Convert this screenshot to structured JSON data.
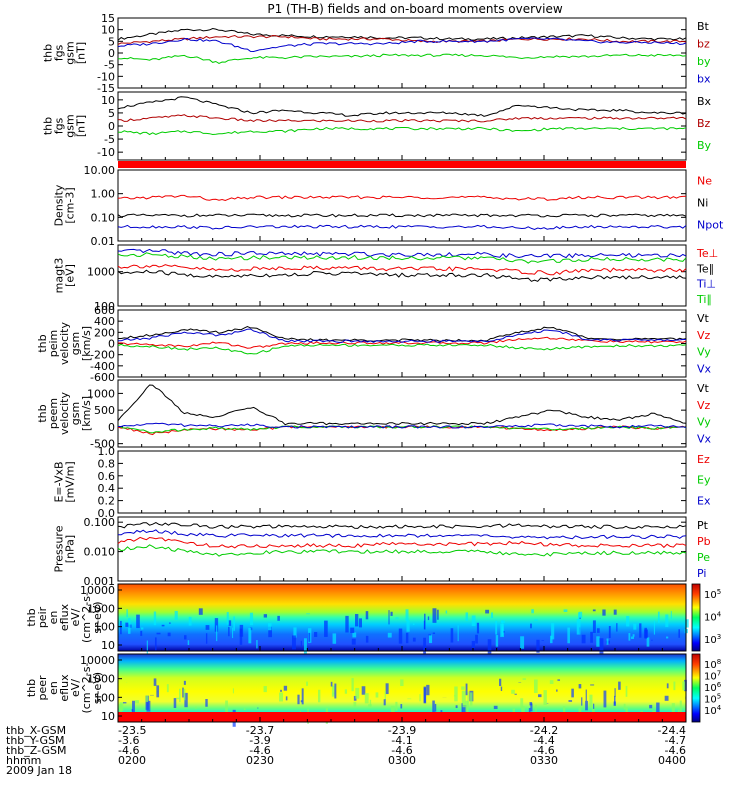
{
  "title": "P1 (TH-B) fields and on-board moments overview",
  "chart_data": [
    {
      "type": "line",
      "panel": "fgs_gsm",
      "ylabel": [
        "thb",
        "fgs",
        "gsm",
        "[nT]"
      ],
      "yticks": [
        "15",
        "10",
        "5",
        "0",
        "-5",
        "-10",
        "-15"
      ],
      "ylim": [
        -15,
        15
      ],
      "series": [
        {
          "name": "Bt",
          "color": "#000000",
          "values": [
            6,
            8,
            10,
            10,
            8,
            7.5,
            7,
            7,
            6.5,
            6.5,
            6,
            6,
            6.5,
            7,
            7.5,
            6.5,
            6,
            6
          ]
        },
        {
          "name": "bz",
          "color": "#b00000",
          "values": [
            4,
            5,
            6,
            7,
            7,
            7,
            6,
            6,
            6,
            5,
            5,
            5,
            6,
            6,
            6,
            5,
            5,
            5
          ]
        },
        {
          "name": "by",
          "color": "#00cc00",
          "values": [
            -2,
            -3,
            -1,
            -4,
            -2,
            -2,
            -1.5,
            -1.5,
            -1,
            -1,
            -1,
            -1,
            -2,
            -1.5,
            -1.5,
            -1,
            -1,
            -1
          ]
        },
        {
          "name": "bx",
          "color": "#0000cc",
          "values": [
            3,
            4,
            6,
            5,
            1,
            3,
            4,
            4,
            4,
            5,
            5,
            5,
            6,
            6,
            5,
            4.5,
            4.5,
            4
          ]
        }
      ]
    },
    {
      "type": "line",
      "panel": "fgs_gsm_2",
      "ylabel": [
        "thb",
        "fgs",
        "gsm",
        "[nT]"
      ],
      "yticks": [
        "10",
        "5",
        "0",
        "-5",
        "-10"
      ],
      "ylim": [
        -13,
        13
      ],
      "series": [
        {
          "name": "Bx",
          "color": "#000000",
          "values": [
            7,
            9,
            11,
            8,
            5,
            6,
            5,
            4,
            5,
            5,
            5,
            4,
            8,
            7,
            6,
            6,
            5,
            5
          ]
        },
        {
          "name": "Bz",
          "color": "#b00000",
          "values": [
            2,
            3,
            4,
            3,
            2,
            2,
            2,
            2,
            2,
            2,
            2,
            2,
            3,
            3,
            3,
            3,
            3,
            3
          ]
        },
        {
          "name": "By",
          "color": "#00cc00",
          "values": [
            -2,
            -3,
            -2,
            -3,
            -2,
            -2,
            -1,
            -1,
            -1,
            -1,
            -1,
            -1,
            -2,
            -1,
            -1,
            -1,
            -1,
            -1
          ]
        }
      ]
    },
    {
      "type": "line",
      "panel": "density",
      "ylabel": [
        "Density",
        "[cm-3]"
      ],
      "yticks": [
        "10.00",
        "1.00",
        "0.10",
        "0.01"
      ],
      "ylim": [
        0.01,
        10
      ],
      "scale": "log",
      "series": [
        {
          "name": "Ne",
          "color": "#ee0000",
          "values": [
            0.6,
            0.7,
            0.8,
            0.5,
            0.7,
            0.7,
            0.7,
            0.7,
            0.7,
            0.7,
            0.7,
            0.7,
            0.6,
            0.6,
            0.7,
            0.7,
            0.7,
            0.7
          ]
        },
        {
          "name": "Ni",
          "color": "#000000",
          "values": [
            0.12,
            0.12,
            0.12,
            0.12,
            0.12,
            0.12,
            0.12,
            0.12,
            0.12,
            0.12,
            0.12,
            0.12,
            0.12,
            0.12,
            0.12,
            0.12,
            0.12,
            0.12
          ]
        },
        {
          "name": "Npot",
          "color": "#0000cc",
          "values": [
            0.04,
            0.04,
            0.04,
            0.035,
            0.04,
            0.04,
            0.04,
            0.04,
            0.04,
            0.04,
            0.04,
            0.04,
            0.035,
            0.035,
            0.04,
            0.04,
            0.04,
            0.04
          ]
        }
      ]
    },
    {
      "type": "line",
      "panel": "temperature",
      "ylabel": [
        "magt3",
        "[eV]"
      ],
      "yticks": [
        "1000",
        "100"
      ],
      "ylim": [
        100,
        6000
      ],
      "scale": "log",
      "series": [
        {
          "name": "Te⊥",
          "color": "#ee0000",
          "values": [
            1400,
            1500,
            1300,
            1100,
            1200,
            1300,
            1300,
            1300,
            1200,
            1200,
            1200,
            1200,
            1000,
            900,
            1100,
            1100,
            1100,
            1100
          ]
        },
        {
          "name": "Te∥",
          "color": "#000000",
          "values": [
            900,
            1000,
            800,
            700,
            800,
            800,
            900,
            900,
            800,
            800,
            800,
            800,
            600,
            600,
            700,
            700,
            700,
            700
          ]
        },
        {
          "name": "Ti⊥",
          "color": "#0000cc",
          "values": [
            3800,
            4000,
            3500,
            3200,
            3500,
            3300,
            3300,
            3300,
            3200,
            3200,
            3200,
            3200,
            2800,
            2900,
            3000,
            3000,
            2900,
            3000
          ]
        },
        {
          "name": "Ti∥",
          "color": "#00cc00",
          "values": [
            3000,
            3200,
            2700,
            2300,
            2600,
            2600,
            2600,
            2600,
            2500,
            2500,
            2500,
            2500,
            2000,
            2000,
            2300,
            2300,
            2300,
            2300
          ]
        }
      ]
    },
    {
      "type": "line",
      "panel": "peim_velocity",
      "ylabel": [
        "thb",
        "peim",
        "velocity",
        "gsm",
        "[km/s]"
      ],
      "yticks": [
        "600",
        "400",
        "200",
        "0",
        "-200",
        "-400",
        "-600"
      ],
      "ylim": [
        -600,
        600
      ],
      "series": [
        {
          "name": "Vt",
          "color": "#000000",
          "values": [
            100,
            150,
            250,
            200,
            300,
            80,
            60,
            60,
            60,
            60,
            60,
            60,
            200,
            300,
            100,
            80,
            80,
            80
          ]
        },
        {
          "name": "Vz",
          "color": "#ee0000",
          "values": [
            0,
            -20,
            -50,
            20,
            -80,
            0,
            10,
            10,
            10,
            10,
            10,
            10,
            80,
            100,
            50,
            30,
            30,
            30
          ]
        },
        {
          "name": "Vy",
          "color": "#00cc00",
          "values": [
            -30,
            -50,
            -100,
            -80,
            -200,
            -40,
            -30,
            -30,
            -30,
            -30,
            -30,
            -30,
            -80,
            -100,
            -60,
            -40,
            -40,
            -40
          ]
        },
        {
          "name": "Vx",
          "color": "#0000cc",
          "values": [
            50,
            100,
            200,
            150,
            250,
            50,
            40,
            40,
            40,
            40,
            40,
            40,
            150,
            250,
            80,
            60,
            60,
            60
          ]
        }
      ]
    },
    {
      "type": "line",
      "panel": "peem_velocity",
      "ylabel": [
        "thb",
        "peem",
        "velocity",
        "gsm",
        "[km/s]"
      ],
      "yticks": [
        "1000",
        "500",
        "0",
        "-500"
      ],
      "ylim": [
        -600,
        1400
      ],
      "series": [
        {
          "name": "Vt",
          "color": "#000000",
          "values": [
            200,
            1300,
            400,
            300,
            600,
            100,
            100,
            100,
            100,
            100,
            100,
            100,
            300,
            500,
            300,
            200,
            400,
            100
          ]
        },
        {
          "name": "Vz",
          "color": "#ee0000",
          "values": [
            0,
            -200,
            -100,
            -50,
            -100,
            0,
            0,
            0,
            0,
            0,
            0,
            0,
            -50,
            -100,
            -50,
            0,
            -50,
            0
          ]
        },
        {
          "name": "Vy",
          "color": "#00cc00",
          "values": [
            0,
            -150,
            -80,
            -40,
            -80,
            0,
            0,
            0,
            0,
            0,
            0,
            0,
            -40,
            -80,
            -40,
            0,
            -40,
            0
          ]
        },
        {
          "name": "Vx",
          "color": "#0000cc",
          "values": [
            0,
            100,
            50,
            30,
            60,
            0,
            0,
            0,
            0,
            0,
            0,
            0,
            30,
            60,
            30,
            0,
            30,
            0
          ]
        }
      ]
    },
    {
      "type": "line",
      "panel": "efield",
      "ylabel": [
        "E=-VxB",
        "[mV/m]"
      ],
      "yticks": [
        "1.0",
        "0.8",
        "0.6",
        "0.4",
        "0.2",
        "0.0"
      ],
      "ylim": [
        0,
        1
      ],
      "series": [
        {
          "name": "Ez",
          "color": "#ee0000",
          "values": []
        },
        {
          "name": "Ey",
          "color": "#00cc00",
          "values": []
        },
        {
          "name": "Ex",
          "color": "#0000cc",
          "values": []
        }
      ]
    },
    {
      "type": "line",
      "panel": "pressure",
      "ylabel": [
        "Pressure",
        "[nPa]"
      ],
      "yticks": [
        "0.100",
        "0.010",
        "0.001"
      ],
      "ylim": [
        0.001,
        0.15
      ],
      "scale": "log",
      "series": [
        {
          "name": "Pt",
          "color": "#000000",
          "values": [
            0.07,
            0.09,
            0.08,
            0.07,
            0.07,
            0.07,
            0.07,
            0.07,
            0.07,
            0.07,
            0.07,
            0.07,
            0.08,
            0.07,
            0.07,
            0.07,
            0.07,
            0.07
          ]
        },
        {
          "name": "Pb",
          "color": "#ee0000",
          "values": [
            0.02,
            0.03,
            0.02,
            0.015,
            0.015,
            0.016,
            0.016,
            0.016,
            0.018,
            0.018,
            0.018,
            0.018,
            0.02,
            0.017,
            0.016,
            0.016,
            0.016,
            0.016
          ]
        },
        {
          "name": "Pe",
          "color": "#00cc00",
          "values": [
            0.012,
            0.015,
            0.01,
            0.008,
            0.009,
            0.01,
            0.01,
            0.01,
            0.01,
            0.01,
            0.01,
            0.01,
            0.008,
            0.008,
            0.009,
            0.009,
            0.009,
            0.009
          ]
        },
        {
          "name": "Pi",
          "color": "#0000cc",
          "values": [
            0.04,
            0.05,
            0.04,
            0.035,
            0.035,
            0.035,
            0.035,
            0.035,
            0.035,
            0.035,
            0.035,
            0.035,
            0.03,
            0.03,
            0.032,
            0.032,
            0.032,
            0.032
          ]
        }
      ]
    },
    {
      "type": "heatmap",
      "panel": "peir_spectrogram",
      "ylabel": [
        "thb",
        "peir",
        "en",
        "eflux",
        "eV/",
        "(cm^2-s-",
        "sr-eV)"
      ],
      "yticks": [
        "10000",
        "1000",
        "100",
        "10"
      ],
      "colorbar_ticks": [
        "10^5",
        "10^4",
        "10^3"
      ]
    },
    {
      "type": "heatmap",
      "panel": "peer_spectrogram",
      "ylabel": [
        "thb",
        "peer",
        "en",
        "eflux",
        "eV/",
        "(cm^2-s-",
        "sr-eV)"
      ],
      "yticks": [
        "10000",
        "1000",
        "100",
        "10"
      ],
      "colorbar_ticks": [
        "10^8",
        "10^7",
        "10^6",
        "10^5",
        "10^4"
      ]
    }
  ],
  "x_axis": {
    "row_labels": [
      "thb_X-GSM",
      "thb_Y-GSM",
      "thb_Z-GSM",
      "hhmm",
      "2009 Jan 18"
    ],
    "ticks": [
      {
        "values": [
          "-23.5",
          "-3.6",
          "-4.6",
          "0200"
        ]
      },
      {
        "values": [
          "-23.7",
          "-3.9",
          "-4.6",
          "0230"
        ]
      },
      {
        "values": [
          "-23.9",
          "-4.1",
          "-4.6",
          "0300"
        ]
      },
      {
        "values": [
          "-24.2",
          "-4.4",
          "-4.6",
          "0330"
        ]
      },
      {
        "values": [
          "-24.4",
          "-4.7",
          "-4.6",
          "0400"
        ]
      }
    ]
  }
}
